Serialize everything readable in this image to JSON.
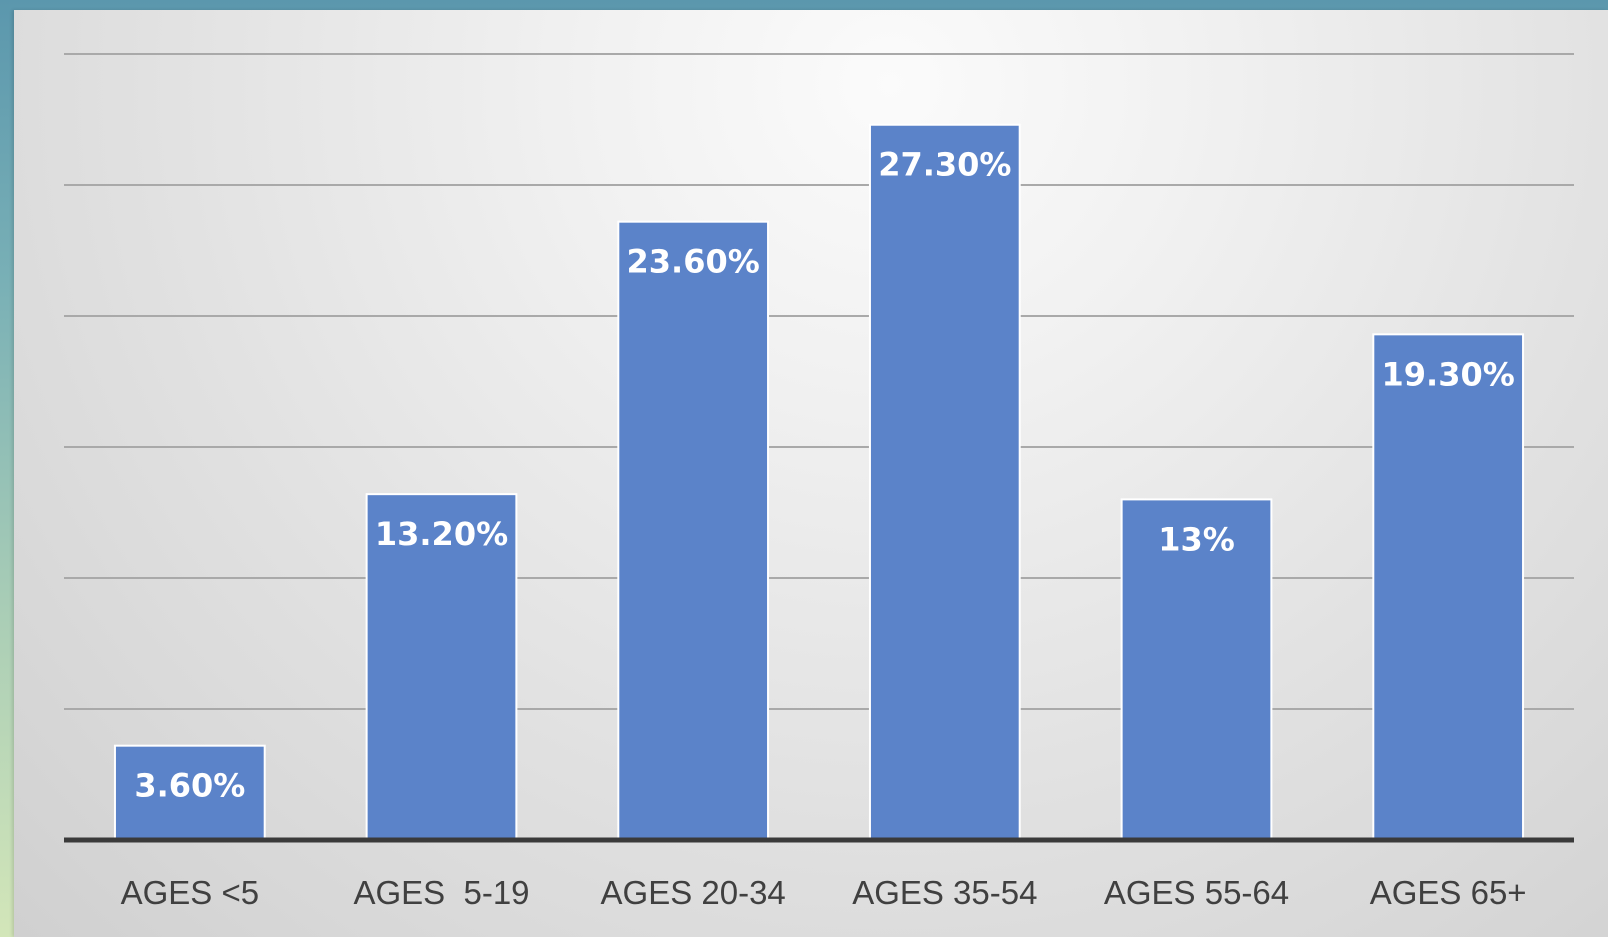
{
  "colors": {
    "bar": "#5b83c9",
    "data_label": "#ffffff",
    "tick_label": "#404040",
    "gridline": "#a9a9a9",
    "axis": "#3a3a3a"
  },
  "chart_data": {
    "type": "bar",
    "title": "",
    "xlabel": "",
    "ylabel": "",
    "categories": [
      "AGES <5",
      "AGES  5-19",
      "AGES 20-34",
      "AGES 35-54",
      "AGES 55-64",
      "AGES 65+"
    ],
    "values": [
      3.6,
      13.2,
      23.6,
      27.3,
      13.0,
      19.3
    ],
    "data_labels": [
      "3.60%",
      "13.20%",
      "23.60%",
      "27.30%",
      "13%",
      "19.30%"
    ],
    "ylim": [
      0,
      30
    ],
    "grid": true,
    "gridline_step": 5,
    "legend": "none"
  }
}
